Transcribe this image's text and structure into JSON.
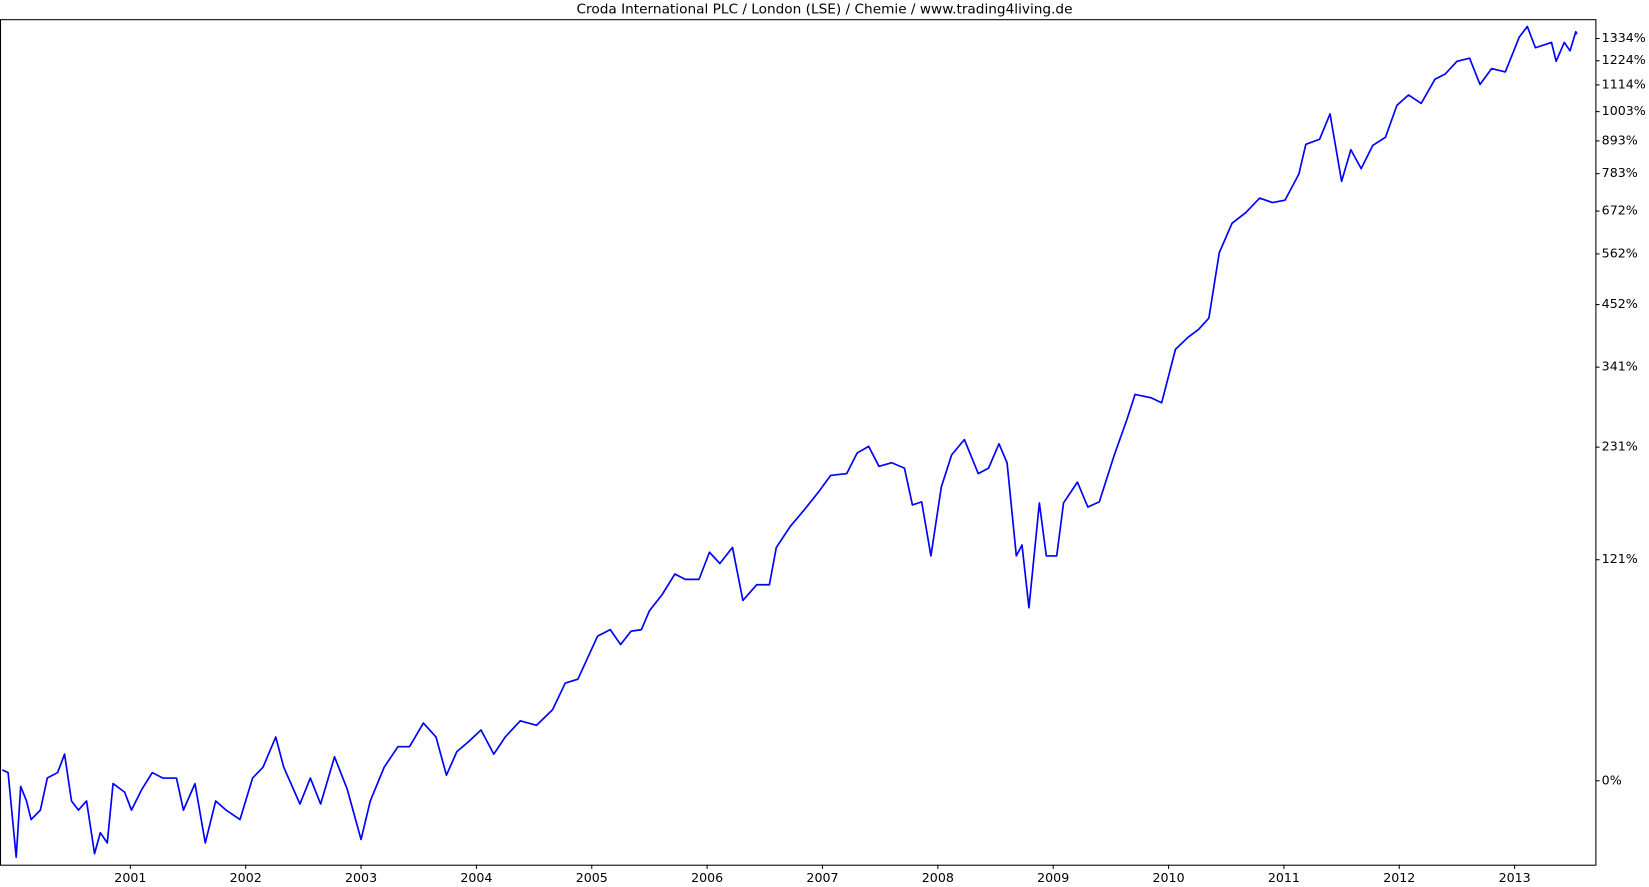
{
  "chart_data": {
    "type": "line",
    "title": "Croda International PLC / London (LSE) / Chemie / www.trading4living.de",
    "ylog": true,
    "xlim": [
      1999.87,
      2013.7
    ],
    "ylim": [
      -26,
      1437
    ],
    "xticks": [
      2001,
      2002,
      2003,
      2004,
      2005,
      2006,
      2007,
      2008,
      2009,
      2010,
      2011,
      2012,
      2013
    ],
    "yticks": [
      {
        "value": 0,
        "label": "0%"
      },
      {
        "value": 121,
        "label": "121%"
      },
      {
        "value": 231,
        "label": "231%"
      },
      {
        "value": 341,
        "label": "341%"
      },
      {
        "value": 452,
        "label": "452%"
      },
      {
        "value": 562,
        "label": "562%"
      },
      {
        "value": 672,
        "label": "672%"
      },
      {
        "value": 783,
        "label": "783%"
      },
      {
        "value": 893,
        "label": "893%"
      },
      {
        "value": 1003,
        "label": "1003%"
      },
      {
        "value": 1114,
        "label": "1114%"
      },
      {
        "value": 1224,
        "label": "1224%"
      },
      {
        "value": 1334,
        "label": "1334%"
      }
    ],
    "series": [
      {
        "color": "#0000ff",
        "x": [
          1999.89,
          1999.94,
          2000.01,
          2000.05,
          2000.1,
          2000.14,
          2000.22,
          2000.28,
          2000.37,
          2000.43,
          2000.49,
          2000.55,
          2000.62,
          2000.69,
          2000.74,
          2000.8,
          2000.85,
          2000.95,
          2001.01,
          2001.1,
          2001.19,
          2001.28,
          2001.4,
          2001.46,
          2001.56,
          2001.65,
          2001.74,
          2001.83,
          2001.95,
          2002.06,
          2002.15,
          2002.26,
          2002.33,
          2002.47,
          2002.56,
          2002.65,
          2002.77,
          2002.88,
          2003.0,
          2003.08,
          2003.2,
          2003.32,
          2003.42,
          2003.54,
          2003.65,
          2003.74,
          2003.83,
          2003.93,
          2004.04,
          2004.15,
          2004.25,
          2004.38,
          2004.52,
          2004.66,
          2004.77,
          2004.88,
          2005.05,
          2005.16,
          2005.25,
          2005.34,
          2005.43,
          2005.5,
          2005.61,
          2005.72,
          2005.81,
          2005.93,
          2006.02,
          2006.11,
          2006.22,
          2006.31,
          2006.43,
          2006.54,
          2006.6,
          2006.72,
          2006.84,
          2006.96,
          2007.07,
          2007.21,
          2007.3,
          2007.4,
          2007.49,
          2007.6,
          2007.71,
          2007.78,
          2007.86,
          2007.94,
          2008.03,
          2008.12,
          2008.23,
          2008.35,
          2008.44,
          2008.53,
          2008.6,
          2008.68,
          2008.73,
          2008.79,
          2008.88,
          2008.94,
          2009.03,
          2009.09,
          2009.21,
          2009.3,
          2009.4,
          2009.53,
          2009.64,
          2009.71,
          2009.85,
          2009.94,
          2010.06,
          2010.17,
          2010.26,
          2010.35,
          2010.44,
          2010.55,
          2010.67,
          2010.79,
          2010.9,
          2011.01,
          2011.13,
          2011.19,
          2011.31,
          2011.4,
          2011.5,
          2011.58,
          2011.67,
          2011.77,
          2011.88,
          2011.98,
          2012.08,
          2012.19,
          2012.31,
          2012.4,
          2012.5,
          2012.61,
          2012.7,
          2012.8,
          2012.92,
          2013.04,
          2013.11,
          2013.18,
          2013.32,
          2013.36,
          2013.43,
          2013.48,
          2013.53,
          2013.54
        ],
        "values": [
          4,
          3,
          -24,
          -2,
          -7,
          -13,
          -10,
          1,
          3,
          10,
          -7,
          -10,
          -7,
          -23,
          -17,
          -20,
          -1,
          -4,
          -10,
          -3,
          3,
          1,
          1,
          -10,
          -1,
          -20,
          -7,
          -10,
          -13,
          1,
          5,
          17,
          5,
          -8,
          1,
          -8,
          9,
          -3,
          -19,
          -7,
          5,
          13,
          13,
          23,
          17,
          2,
          11,
          15,
          20,
          10,
          17,
          24,
          22,
          29,
          42,
          44,
          68,
          72,
          63,
          71,
          72,
          84,
          95,
          110,
          106,
          106,
          127,
          118,
          131,
          91,
          102,
          102,
          131,
          149,
          164,
          181,
          199,
          201,
          224,
          232,
          209,
          213,
          207,
          169,
          172,
          124,
          187,
          222,
          240,
          201,
          207,
          235,
          213,
          124,
          133,
          86,
          171,
          124,
          124,
          171,
          192,
          167,
          172,
          222,
          266,
          300,
          295,
          288,
          370,
          391,
          405,
          426,
          565,
          639,
          668,
          709,
          696,
          703,
          782,
          881,
          899,
          994,
          759,
          862,
          799,
          877,
          906,
          1028,
          1071,
          1036,
          1139,
          1163,
          1221,
          1236,
          1116,
          1187,
          1172,
          1341,
          1397,
          1287,
          1314,
          1221,
          1314,
          1272,
          1369,
          1357
        ]
      }
    ]
  }
}
